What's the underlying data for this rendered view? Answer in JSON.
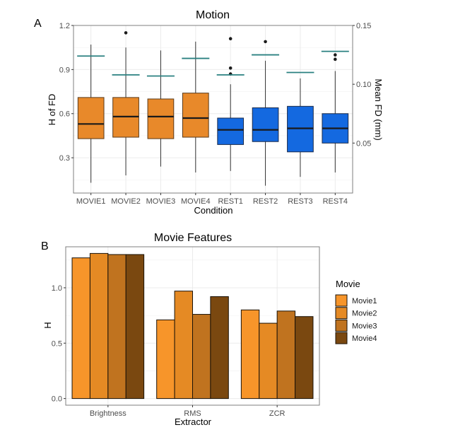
{
  "chart_data": [
    {
      "panel_label": "A",
      "type": "box",
      "title": "Motion",
      "xlabel": "Condition",
      "ylabel": "H of FD",
      "y2label": "Mean FD (mm)",
      "ylim": [
        0.06,
        1.2
      ],
      "yticks": [
        "0.3",
        "0.6",
        "0.9",
        "1.2"
      ],
      "y2lim": [
        0.0075,
        0.15
      ],
      "y2ticks": [
        "0.05",
        "0.10",
        "0.15"
      ],
      "grid": true,
      "categories": [
        "MOVIE1",
        "MOVIE2",
        "MOVIE3",
        "MOVIE4",
        "REST1",
        "REST2",
        "REST3",
        "REST4"
      ],
      "colors": {
        "movie": "#E8892A",
        "rest": "#1469E0",
        "mean_fd_line": "#2A8080"
      },
      "boxes": [
        {
          "group": "movie",
          "whisker_low": 0.13,
          "q1": 0.43,
          "median": 0.53,
          "q3": 0.71,
          "whisker_high": 1.07,
          "outliers": [],
          "mean_fd": 0.124
        },
        {
          "group": "movie",
          "whisker_low": 0.18,
          "q1": 0.44,
          "median": 0.58,
          "q3": 0.71,
          "whisker_high": 1.05,
          "outliers": [
            1.15
          ],
          "mean_fd": 0.108
        },
        {
          "group": "movie",
          "whisker_low": 0.24,
          "q1": 0.43,
          "median": 0.58,
          "q3": 0.7,
          "whisker_high": 1.03,
          "outliers": [],
          "mean_fd": 0.107
        },
        {
          "group": "movie",
          "whisker_low": 0.2,
          "q1": 0.44,
          "median": 0.57,
          "q3": 0.74,
          "whisker_high": 1.09,
          "outliers": [],
          "mean_fd": 0.122
        },
        {
          "group": "rest",
          "whisker_low": 0.21,
          "q1": 0.39,
          "median": 0.49,
          "q3": 0.57,
          "whisker_high": 0.8,
          "outliers": [
            1.11,
            0.91,
            0.87
          ],
          "mean_fd": 0.108
        },
        {
          "group": "rest",
          "whisker_low": 0.11,
          "q1": 0.41,
          "median": 0.49,
          "q3": 0.64,
          "whisker_high": 0.96,
          "outliers": [
            1.09
          ],
          "mean_fd": 0.125
        },
        {
          "group": "rest",
          "whisker_low": 0.17,
          "q1": 0.34,
          "median": 0.5,
          "q3": 0.65,
          "whisker_high": 0.84,
          "outliers": [],
          "mean_fd": 0.11
        },
        {
          "group": "rest",
          "whisker_low": 0.2,
          "q1": 0.4,
          "median": 0.5,
          "q3": 0.6,
          "whisker_high": 0.89,
          "outliers": [
            1.0,
            0.97
          ],
          "mean_fd": 0.128
        }
      ]
    },
    {
      "panel_label": "B",
      "type": "bar",
      "title": "Movie Features",
      "xlabel": "Extractor",
      "ylabel": "H",
      "ylim": [
        -0.06,
        1.37
      ],
      "yticks": [
        "0.0",
        "0.5",
        "1.0"
      ],
      "grid": true,
      "legend_position": "right",
      "legend_title": "Movie",
      "categories": [
        "Brightness",
        "RMS",
        "ZCR"
      ],
      "series": [
        {
          "name": "Movie1",
          "color": "#F7952A",
          "values": [
            1.27,
            0.71,
            0.8
          ]
        },
        {
          "name": "Movie2",
          "color": "#E58A24",
          "values": [
            1.31,
            0.97,
            0.68
          ]
        },
        {
          "name": "Movie3",
          "color": "#C0731F",
          "values": [
            1.3,
            0.76,
            0.79
          ]
        },
        {
          "name": "Movie4",
          "color": "#7A4810",
          "values": [
            1.3,
            0.92,
            0.74
          ]
        }
      ]
    }
  ]
}
